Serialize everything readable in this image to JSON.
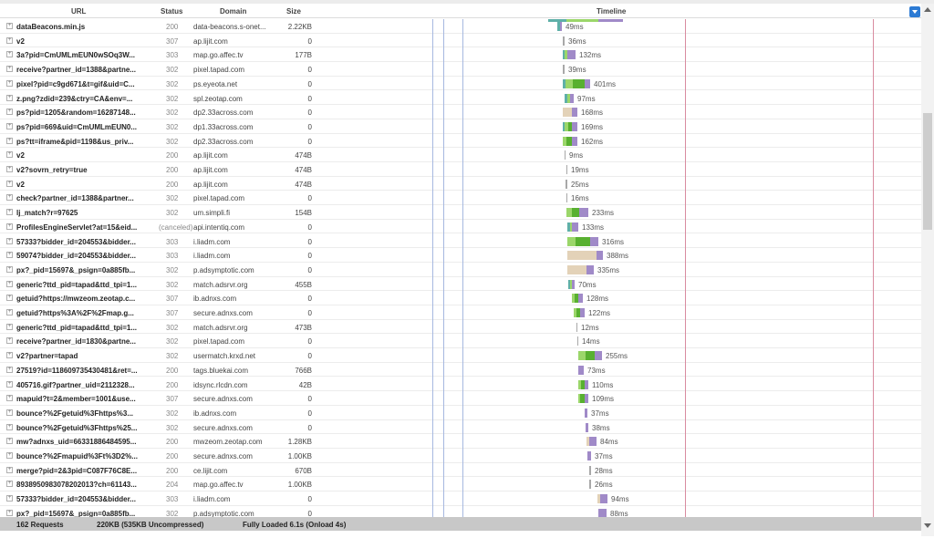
{
  "header": {
    "url": "URL",
    "status": "Status",
    "domain": "Domain",
    "size": "Size",
    "timeline": "Timeline"
  },
  "colors": {
    "blocked": "#e3d2b8",
    "dns": "#5fb0a8",
    "connect": "#9bd66a",
    "wait": "#58b030",
    "receive": "#a08ac8",
    "onload_line": "#d98ca0",
    "dom_line": "#a6b8e0"
  },
  "requests": [
    {
      "url": "dataBeacons.min.js",
      "status": "200",
      "domain": "data-beacons.s-onet...",
      "size": "2.22KB",
      "time": "49ms"
    },
    {
      "url": "v2",
      "status": "307",
      "domain": "ap.lijit.com",
      "size": "0",
      "time": "36ms"
    },
    {
      "url": "3a?pid=CmUMLmEUN0wSOq3W...",
      "status": "303",
      "domain": "map.go.affec.tv",
      "size": "177B",
      "time": "132ms"
    },
    {
      "url": "receive?partner_id=1388&partne...",
      "status": "302",
      "domain": "pixel.tapad.com",
      "size": "0",
      "time": "39ms"
    },
    {
      "url": "pixel?pid=c9gd671&t=gif&uid=C...",
      "status": "302",
      "domain": "ps.eyeota.net",
      "size": "0",
      "time": "401ms"
    },
    {
      "url": "z.png?zdid=239&ctry=CA&env=...",
      "status": "302",
      "domain": "spl.zeotap.com",
      "size": "0",
      "time": "97ms"
    },
    {
      "url": "ps?pid=1205&random=16287148...",
      "status": "302",
      "domain": "dp2.33across.com",
      "size": "0",
      "time": "168ms"
    },
    {
      "url": "ps?pid=669&uid=CmUMLmEUN0...",
      "status": "302",
      "domain": "dp1.33across.com",
      "size": "0",
      "time": "169ms"
    },
    {
      "url": "ps?tt=iframe&pid=1198&us_priv...",
      "status": "302",
      "domain": "dp2.33across.com",
      "size": "0",
      "time": "162ms"
    },
    {
      "url": "v2",
      "status": "200",
      "domain": "ap.lijit.com",
      "size": "474B",
      "time": "9ms"
    },
    {
      "url": "v2?sovrn_retry=true",
      "status": "200",
      "domain": "ap.lijit.com",
      "size": "474B",
      "time": "19ms"
    },
    {
      "url": "v2",
      "status": "200",
      "domain": "ap.lijit.com",
      "size": "474B",
      "time": "25ms"
    },
    {
      "url": "check?partner_id=1388&partner...",
      "status": "302",
      "domain": "pixel.tapad.com",
      "size": "0",
      "time": "16ms"
    },
    {
      "url": "lj_match?r=97625",
      "status": "302",
      "domain": "um.simpli.fi",
      "size": "154B",
      "time": "233ms"
    },
    {
      "url": "ProfilesEngineServlet?at=15&eid...",
      "status": "(canceled)",
      "domain": "api.intentiq.com",
      "size": "0",
      "time": "133ms"
    },
    {
      "url": "57333?bidder_id=204553&bidder...",
      "status": "303",
      "domain": "i.liadm.com",
      "size": "0",
      "time": "316ms"
    },
    {
      "url": "59074?bidder_id=204553&bidder...",
      "status": "303",
      "domain": "i.liadm.com",
      "size": "0",
      "time": "388ms"
    },
    {
      "url": "px?_pid=15697&_psign=0a885fb...",
      "status": "302",
      "domain": "p.adsymptotic.com",
      "size": "0",
      "time": "335ms"
    },
    {
      "url": "generic?ttd_pid=tapad&ttd_tpi=1...",
      "status": "302",
      "domain": "match.adsrvr.org",
      "size": "455B",
      "time": "70ms"
    },
    {
      "url": "getuid?https://mwzeom.zeotap.c...",
      "status": "307",
      "domain": "ib.adnxs.com",
      "size": "0",
      "time": "128ms"
    },
    {
      "url": "getuid?https%3A%2F%2Fmap.g...",
      "status": "307",
      "domain": "secure.adnxs.com",
      "size": "0",
      "time": "122ms"
    },
    {
      "url": "generic?ttd_pid=tapad&ttd_tpi=1...",
      "status": "302",
      "domain": "match.adsrvr.org",
      "size": "473B",
      "time": "12ms"
    },
    {
      "url": "receive?partner_id=1830&partne...",
      "status": "302",
      "domain": "pixel.tapad.com",
      "size": "0",
      "time": "14ms"
    },
    {
      "url": "v2?partner=tapad",
      "status": "302",
      "domain": "usermatch.krxd.net",
      "size": "0",
      "time": "255ms"
    },
    {
      "url": "27519?id=118609735430481&ret=...",
      "status": "200",
      "domain": "tags.bluekai.com",
      "size": "766B",
      "time": "73ms"
    },
    {
      "url": "405716.gif?partner_uid=2112328...",
      "status": "200",
      "domain": "idsync.rlcdn.com",
      "size": "42B",
      "time": "110ms"
    },
    {
      "url": "mapuid?t=2&member=1001&use...",
      "status": "307",
      "domain": "secure.adnxs.com",
      "size": "0",
      "time": "109ms"
    },
    {
      "url": "bounce?%2Fgetuid%3Fhttps%3...",
      "status": "302",
      "domain": "ib.adnxs.com",
      "size": "0",
      "time": "37ms"
    },
    {
      "url": "bounce?%2Fgetuid%3Fhttps%25...",
      "status": "302",
      "domain": "secure.adnxs.com",
      "size": "0",
      "time": "38ms"
    },
    {
      "url": "mw?adnxs_uid=66331886484595...",
      "status": "200",
      "domain": "mwzeom.zeotap.com",
      "size": "1.28KB",
      "time": "84ms"
    },
    {
      "url": "bounce?%2Fmapuid%3Ft%3D2%...",
      "status": "200",
      "domain": "secure.adnxs.com",
      "size": "1.00KB",
      "time": "37ms"
    },
    {
      "url": "merge?pid=2&3pid=C087F76C8E...",
      "status": "200",
      "domain": "ce.lijit.com",
      "size": "670B",
      "time": "28ms"
    },
    {
      "url": "8938950983078202013?ch=61143...",
      "status": "204",
      "domain": "map.go.affec.tv",
      "size": "1.00KB",
      "time": "26ms"
    },
    {
      "url": "57333?bidder_id=204553&bidder...",
      "status": "303",
      "domain": "i.liadm.com",
      "size": "0",
      "time": "94ms"
    },
    {
      "url": "px?_pid=15697&_psign=0a885fb...",
      "status": "302",
      "domain": "p.adsymptotic.com",
      "size": "0",
      "time": "88ms"
    }
  ],
  "footer": {
    "requests": "162 Requests",
    "size": "220KB  (535KB Uncompressed)",
    "loaded": "Fully Loaded 6.1s  (Onload 4s)"
  }
}
